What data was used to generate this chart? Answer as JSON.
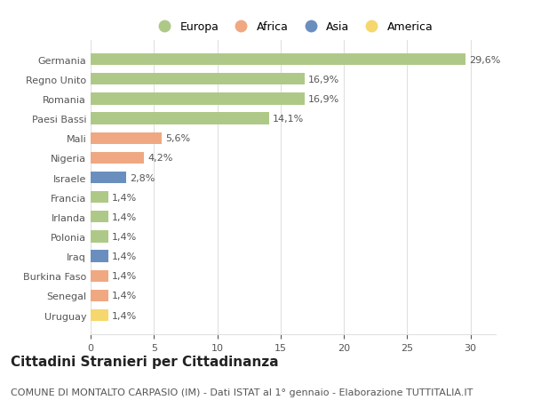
{
  "categories": [
    "Germania",
    "Regno Unito",
    "Romania",
    "Paesi Bassi",
    "Mali",
    "Nigeria",
    "Israele",
    "Francia",
    "Irlanda",
    "Polonia",
    "Iraq",
    "Burkina Faso",
    "Senegal",
    "Uruguay"
  ],
  "values": [
    29.6,
    16.9,
    16.9,
    14.1,
    5.6,
    4.2,
    2.8,
    1.4,
    1.4,
    1.4,
    1.4,
    1.4,
    1.4,
    1.4
  ],
  "labels": [
    "29,6%",
    "16,9%",
    "16,9%",
    "14,1%",
    "5,6%",
    "4,2%",
    "2,8%",
    "1,4%",
    "1,4%",
    "1,4%",
    "1,4%",
    "1,4%",
    "1,4%",
    "1,4%"
  ],
  "continents": [
    "Europa",
    "Europa",
    "Europa",
    "Europa",
    "Africa",
    "Africa",
    "Asia",
    "Europa",
    "Europa",
    "Europa",
    "Asia",
    "Africa",
    "Africa",
    "America"
  ],
  "continent_colors": {
    "Europa": "#aec987",
    "Africa": "#f0a882",
    "Asia": "#6a8fbf",
    "America": "#f5d76e"
  },
  "legend_order": [
    "Europa",
    "Africa",
    "Asia",
    "America"
  ],
  "title": "Cittadini Stranieri per Cittadinanza",
  "subtitle": "COMUNE DI MONTALTO CARPASIO (IM) - Dati ISTAT al 1° gennaio - Elaborazione TUTTITALIA.IT",
  "xlim": [
    0,
    32
  ],
  "background_color": "#ffffff",
  "grid_color": "#e0e0e0",
  "title_fontsize": 11,
  "subtitle_fontsize": 8,
  "label_fontsize": 8,
  "tick_fontsize": 8
}
